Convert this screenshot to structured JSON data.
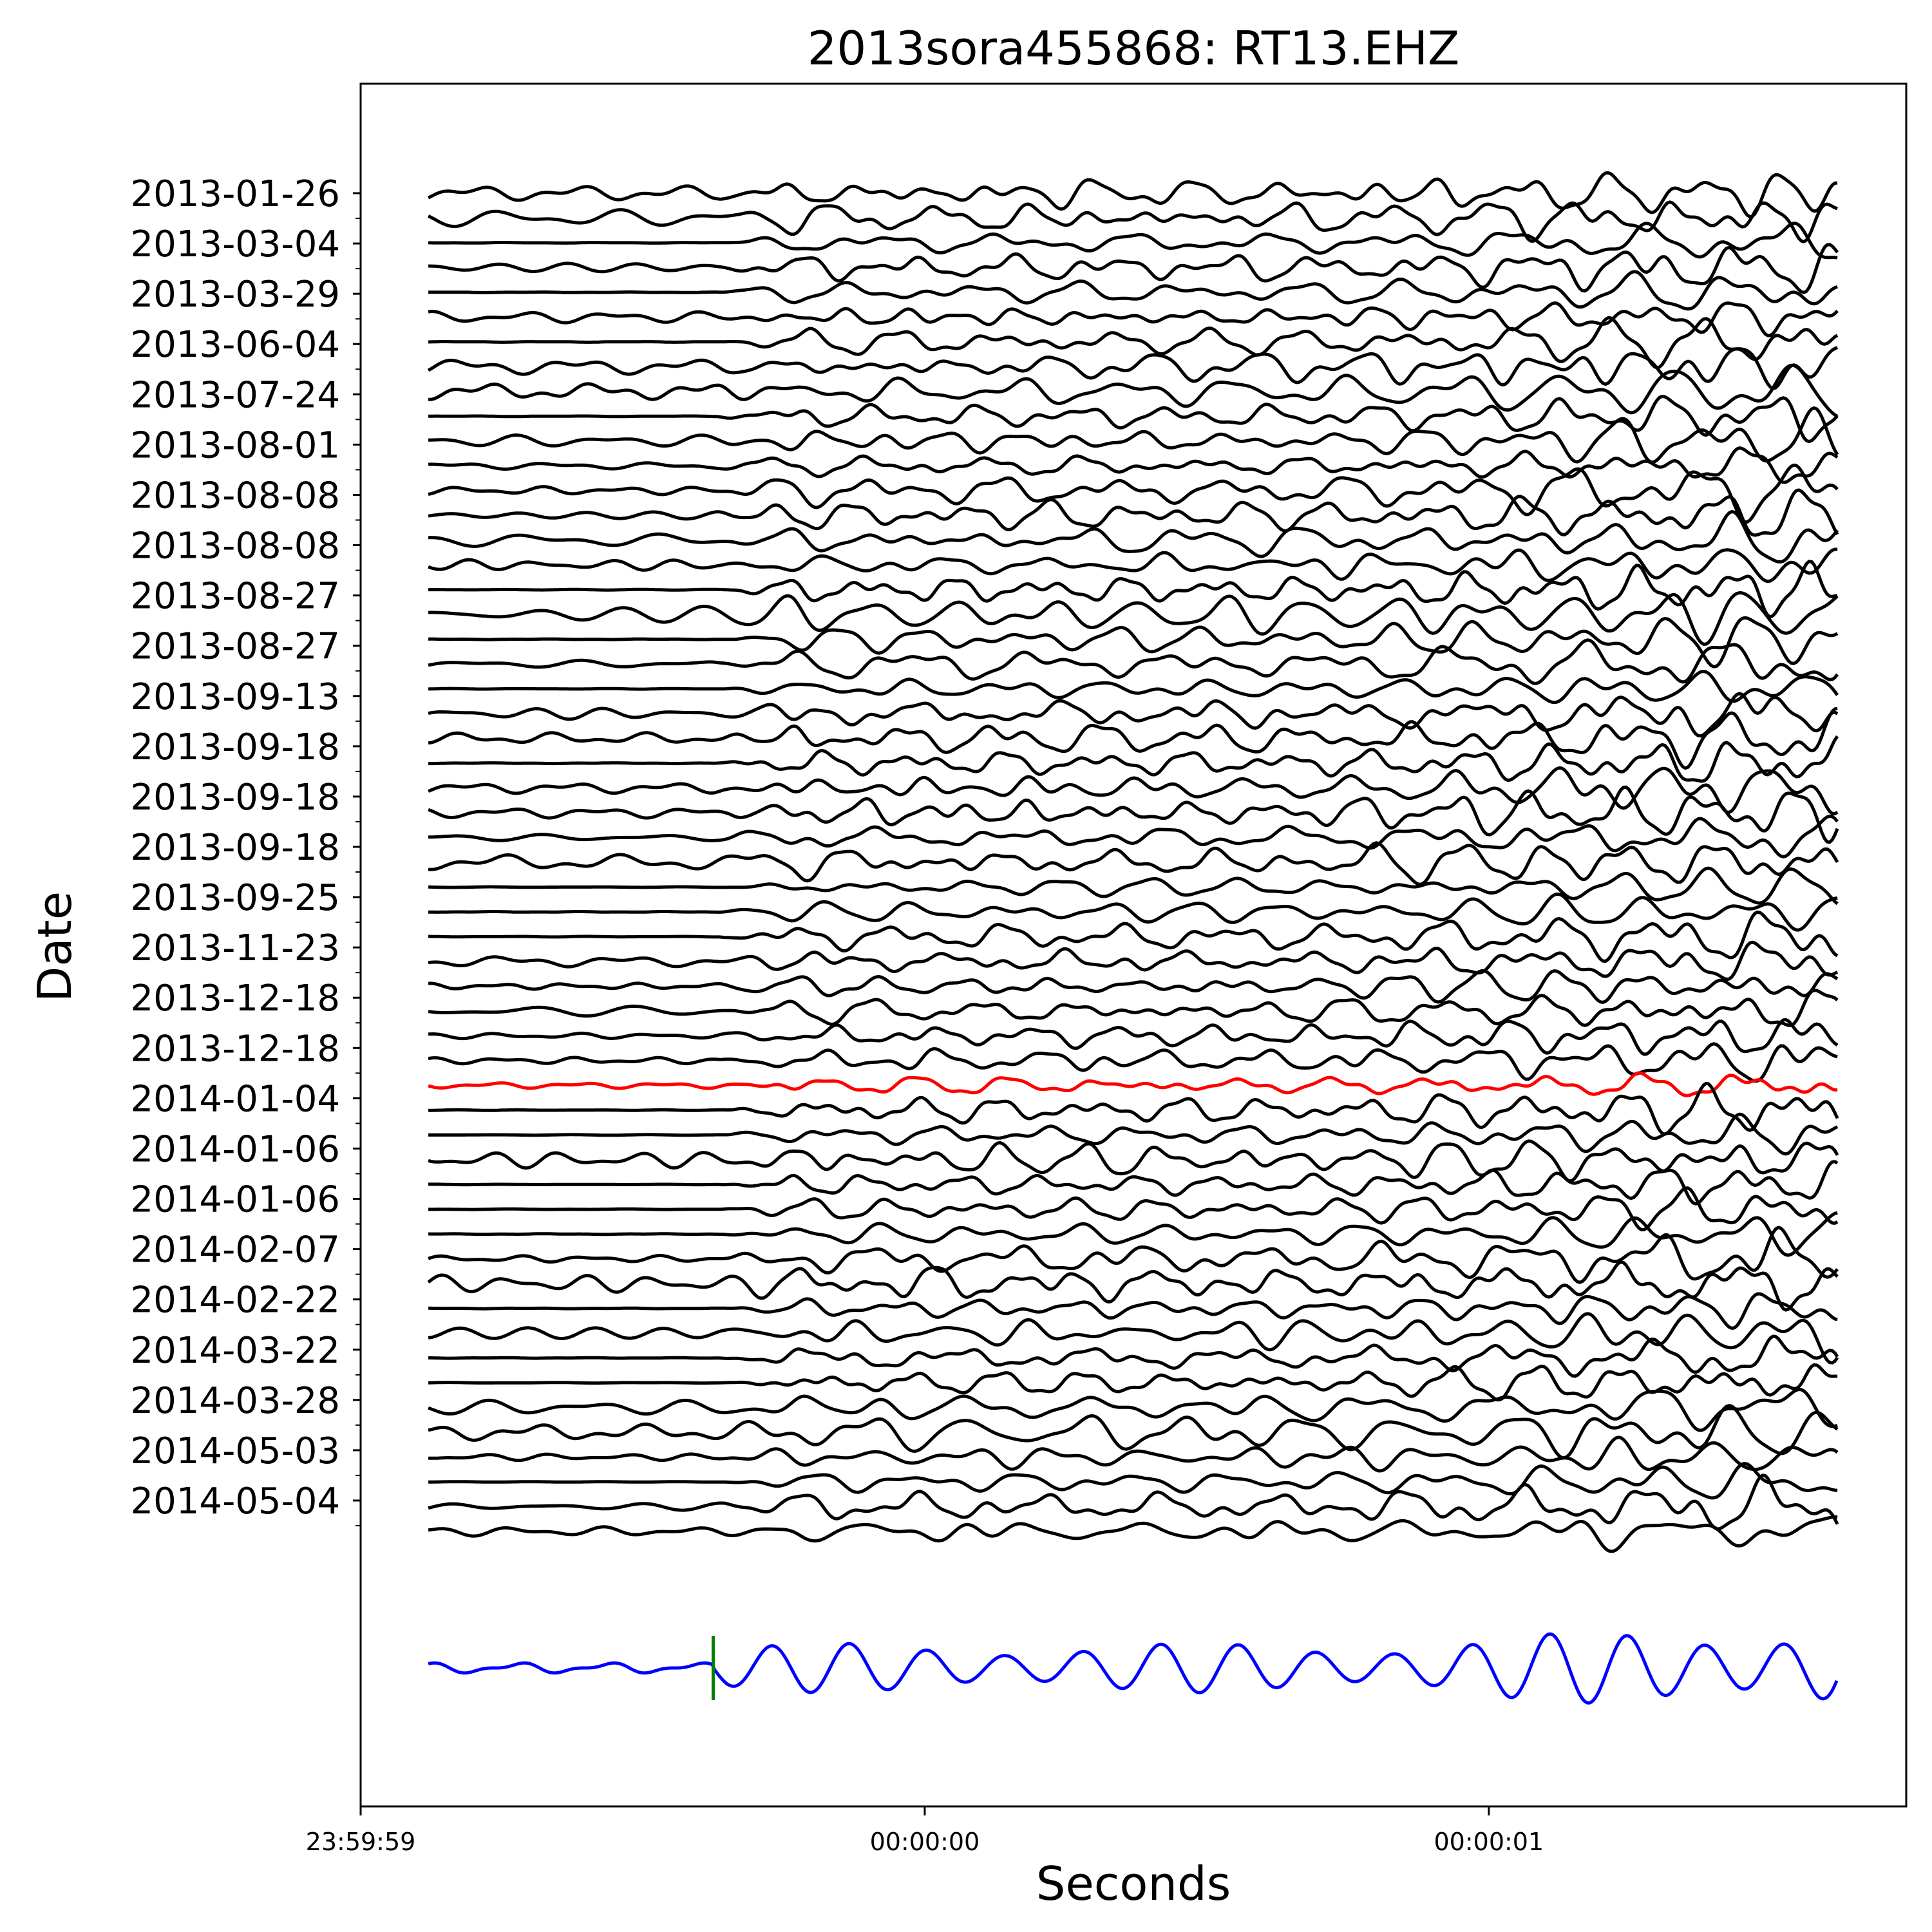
{
  "chart_data": {
    "type": "line",
    "title": "2013sora455868: RT13.EHZ",
    "xlabel": "Seconds",
    "ylabel": "Date",
    "x_tick_labels": [
      "23:59:59",
      "00:00:00",
      "00:00:01"
    ],
    "x_ticks_seconds": [
      -1,
      0,
      1
    ],
    "xlim_seconds": [
      -1,
      1.74
    ],
    "trace_window_seconds": [
      -0.88,
      1.62
    ],
    "pick_time_seconds": -0.375,
    "grid": false,
    "y_tick_labels": [
      "2013-01-26",
      "2013-03-04",
      "2013-03-29",
      "2013-06-04",
      "2013-07-24",
      "2013-08-01",
      "2013-08-08",
      "2013-08-08",
      "2013-08-27",
      "2013-08-27",
      "2013-09-13",
      "2013-09-18",
      "2013-09-18",
      "2013-09-18",
      "2013-09-25",
      "2013-11-23",
      "2013-12-18",
      "2013-12-18",
      "2014-01-04",
      "2014-01-06",
      "2014-01-06",
      "2014-02-07",
      "2014-02-22",
      "2014-03-22",
      "2014-03-28",
      "2014-05-03",
      "2014-05-04"
    ],
    "trace_count": 55,
    "highlighted_trace_index": 36,
    "colors": {
      "traces": "#000000",
      "highlight": "#ff0000",
      "stack": "#0000ff",
      "pick": "#008000"
    }
  }
}
